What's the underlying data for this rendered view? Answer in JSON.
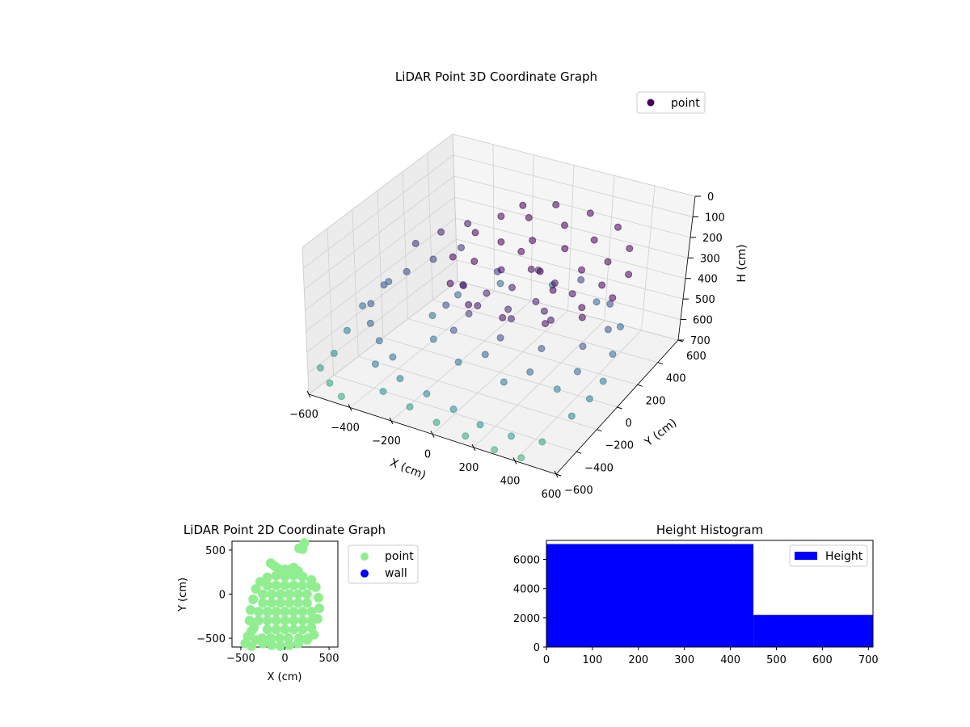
{
  "chart_data": [
    {
      "id": "scatter3d",
      "type": "scatter",
      "title": "LiDAR Point 3D Coordinate Graph",
      "xlabel": "X (cm)",
      "ylabel": "Y (cm)",
      "zlabel": "H (cm)",
      "xlim": [
        -600,
        600
      ],
      "ylim": [
        -600,
        600
      ],
      "zlim": [
        700,
        0
      ],
      "xticks": [
        "−600",
        "−400",
        "−200",
        "0",
        "200",
        "400",
        "600"
      ],
      "yticks": [
        "−600",
        "−400",
        "−200",
        "0",
        "200",
        "400",
        "600"
      ],
      "zticks": [
        "0",
        "100",
        "200",
        "300",
        "400",
        "500",
        "600",
        "700"
      ],
      "grid": true,
      "legend": {
        "position": "top-right",
        "entries": [
          {
            "label": "point",
            "color": "#440154"
          }
        ]
      },
      "colormap": "viridis",
      "series": [
        {
          "name": "point",
          "points": [
            [
              -120,
              380,
              120
            ],
            [
              20,
              420,
              100
            ],
            [
              180,
              440,
              110
            ],
            [
              330,
              420,
              130
            ],
            [
              440,
              330,
              160
            ],
            [
              520,
              180,
              190
            ],
            [
              530,
              20,
              220
            ],
            [
              470,
              -140,
              250
            ],
            [
              340,
              -230,
              270
            ],
            [
              150,
              -260,
              280
            ],
            [
              -20,
              -250,
              270
            ],
            [
              -160,
              -160,
              250
            ],
            [
              -240,
              0,
              220
            ],
            [
              -230,
              170,
              180
            ],
            [
              -180,
              300,
              150
            ],
            [
              -60,
              330,
              140
            ],
            [
              100,
              360,
              150
            ],
            [
              260,
              340,
              170
            ],
            [
              380,
              250,
              200
            ],
            [
              430,
              110,
              230
            ],
            [
              420,
              -50,
              260
            ],
            [
              330,
              -160,
              290
            ],
            [
              160,
              -200,
              310
            ],
            [
              -10,
              -190,
              300
            ],
            [
              -130,
              -100,
              280
            ],
            [
              -170,
              60,
              250
            ],
            [
              -120,
              200,
              210
            ],
            [
              0,
              260,
              200
            ],
            [
              150,
              280,
              210
            ],
            [
              280,
              200,
              240
            ],
            [
              320,
              50,
              270
            ],
            [
              260,
              -90,
              300
            ],
            [
              100,
              -120,
              320
            ],
            [
              -40,
              -60,
              310
            ],
            [
              -60,
              100,
              280
            ],
            [
              60,
              150,
              270
            ],
            [
              200,
              110,
              280
            ],
            [
              180,
              -20,
              310
            ],
            [
              40,
              20,
              300
            ],
            [
              -80,
              -140,
              380
            ],
            [
              120,
              -220,
              400
            ],
            [
              300,
              -180,
              420
            ],
            [
              440,
              -60,
              430
            ],
            [
              480,
              100,
              420
            ],
            [
              400,
              260,
              400
            ],
            [
              200,
              350,
              380
            ],
            [
              0,
              320,
              370
            ],
            [
              -160,
              240,
              380
            ],
            [
              -250,
              100,
              400
            ],
            [
              -240,
              -60,
              420
            ],
            [
              -120,
              -200,
              440
            ],
            [
              80,
              -280,
              460
            ],
            [
              300,
              -280,
              480
            ],
            [
              470,
              -160,
              490
            ],
            [
              540,
              40,
              490
            ],
            [
              470,
              240,
              480
            ],
            [
              280,
              360,
              470
            ],
            [
              40,
              380,
              460
            ],
            [
              -180,
              300,
              470
            ],
            [
              -300,
              140,
              480
            ],
            [
              -320,
              -40,
              500
            ],
            [
              -220,
              -200,
              510
            ],
            [
              -40,
              -300,
              520
            ],
            [
              200,
              -330,
              530
            ],
            [
              420,
              -250,
              540
            ],
            [
              560,
              -80,
              550
            ],
            [
              -380,
              300,
              350
            ],
            [
              -460,
              200,
              380
            ],
            [
              -520,
              80,
              400
            ],
            [
              -560,
              -40,
              420
            ],
            [
              -540,
              -180,
              440
            ],
            [
              -470,
              -300,
              460
            ],
            [
              -380,
              -380,
              480
            ],
            [
              -280,
              -440,
              500
            ],
            [
              -420,
              420,
              300
            ],
            [
              -500,
              330,
              320
            ],
            [
              -560,
              220,
              340
            ],
            [
              -330,
              -500,
              520
            ],
            [
              -200,
              -520,
              540
            ],
            [
              -60,
              -540,
              560
            ],
            [
              80,
              -560,
              580
            ],
            [
              220,
              -580,
              600
            ],
            [
              360,
              -560,
              620
            ],
            [
              480,
              -500,
              640
            ],
            [
              -260,
              -560,
              600
            ],
            [
              -120,
              -580,
              620
            ],
            [
              20,
              -600,
              640
            ],
            [
              160,
              -600,
              660
            ],
            [
              300,
              -600,
              680
            ],
            [
              420,
              -580,
              690
            ],
            [
              560,
              -380,
              560
            ],
            [
              580,
              -250,
              540
            ],
            [
              -600,
              -500,
              620
            ],
            [
              -520,
              -560,
              640
            ],
            [
              -440,
              -600,
              660
            ],
            [
              -600,
              60,
              460
            ],
            [
              -620,
              -120,
              500
            ],
            [
              -600,
              -280,
              540
            ],
            [
              -580,
              -420,
              580
            ],
            [
              120,
              120,
              250
            ],
            [
              -20,
              200,
              230
            ],
            [
              240,
              20,
              260
            ]
          ]
        }
      ]
    },
    {
      "id": "scatter2d",
      "type": "scatter",
      "title": "LiDAR Point 2D Coordinate Graph",
      "xlabel": "X (cm)",
      "ylabel": "Y (cm)",
      "xlim": [
        -600,
        600
      ],
      "ylim": [
        -600,
        600
      ],
      "xticks": [
        "−500",
        "0",
        "500"
      ],
      "yticks": [
        "−500",
        "0",
        "500"
      ],
      "legend": {
        "position": "outside-right",
        "entries": [
          {
            "label": "point",
            "color": "#90ee90"
          },
          {
            "label": "wall",
            "color": "#0000ff"
          }
        ]
      },
      "series": [
        {
          "name": "point",
          "color": "#90ee90",
          "points": [
            [
              -330,
              -520
            ],
            [
              -250,
              -560
            ],
            [
              -150,
              -580
            ],
            [
              -50,
              -590
            ],
            [
              50,
              -580
            ],
            [
              150,
              -560
            ],
            [
              250,
              -520
            ],
            [
              330,
              -460
            ],
            [
              -380,
              -420
            ],
            [
              -400,
              -300
            ],
            [
              -390,
              -180
            ],
            [
              -360,
              -60
            ],
            [
              -330,
              60
            ],
            [
              -280,
              140
            ],
            [
              -200,
              190
            ],
            [
              -100,
              210
            ],
            [
              0,
              200
            ],
            [
              100,
              210
            ],
            [
              200,
              200
            ],
            [
              300,
              160
            ],
            [
              350,
              80
            ],
            [
              380,
              -40
            ],
            [
              390,
              -160
            ],
            [
              370,
              -280
            ],
            [
              -200,
              -400
            ],
            [
              -100,
              -400
            ],
            [
              0,
              -400
            ],
            [
              100,
              -400
            ],
            [
              200,
              -400
            ],
            [
              300,
              -380
            ],
            [
              -300,
              -300
            ],
            [
              -200,
              -300
            ],
            [
              -100,
              -300
            ],
            [
              0,
              -300
            ],
            [
              100,
              -300
            ],
            [
              200,
              -300
            ],
            [
              300,
              -300
            ],
            [
              -300,
              -200
            ],
            [
              -200,
              -200
            ],
            [
              -100,
              -200
            ],
            [
              0,
              -200
            ],
            [
              100,
              -200
            ],
            [
              200,
              -200
            ],
            [
              300,
              -200
            ],
            [
              -250,
              -100
            ],
            [
              -150,
              -100
            ],
            [
              -50,
              -100
            ],
            [
              50,
              -100
            ],
            [
              150,
              -100
            ],
            [
              250,
              -100
            ],
            [
              -250,
              0
            ],
            [
              -150,
              0
            ],
            [
              -50,
              0
            ],
            [
              50,
              0
            ],
            [
              150,
              0
            ],
            [
              250,
              0
            ],
            [
              -200,
              100
            ],
            [
              -100,
              100
            ],
            [
              0,
              100
            ],
            [
              100,
              100
            ],
            [
              200,
              100
            ],
            [
              300,
              100
            ],
            [
              -350,
              -380
            ],
            [
              -420,
              -480
            ],
            [
              -450,
              -560
            ],
            [
              -380,
              -590
            ],
            [
              100,
              300
            ],
            [
              0,
              280
            ],
            [
              -80,
              290
            ],
            [
              -120,
              320
            ],
            [
              -160,
              350
            ],
            [
              150,
              260
            ],
            [
              200,
              510
            ],
            [
              160,
              520
            ],
            [
              220,
              580
            ],
            [
              60,
              280
            ],
            [
              120,
              250
            ],
            [
              -60,
              240
            ],
            [
              40,
              -500
            ],
            [
              -60,
              -500
            ],
            [
              -160,
              -500
            ],
            [
              160,
              -500
            ],
            [
              260,
              -500
            ],
            [
              -260,
              -500
            ]
          ]
        },
        {
          "name": "wall",
          "color": "#0000ff",
          "points": []
        }
      ]
    },
    {
      "id": "histogram",
      "type": "bar",
      "title": "Height Histogram",
      "xlabel": "",
      "ylabel": "",
      "xlim": [
        0,
        710
      ],
      "ylim": [
        0,
        7300
      ],
      "xticks": [
        "0",
        "100",
        "200",
        "300",
        "400",
        "500",
        "600",
        "700"
      ],
      "yticks": [
        "0",
        "2000",
        "4000",
        "6000"
      ],
      "legend": {
        "position": "top-right",
        "entries": [
          {
            "label": "Height",
            "color": "#0000ff"
          }
        ]
      },
      "series": [
        {
          "name": "Height",
          "color": "#0000ff",
          "bins": [
            0,
            450,
            710
          ],
          "counts": [
            7050,
            2200
          ]
        }
      ]
    }
  ]
}
